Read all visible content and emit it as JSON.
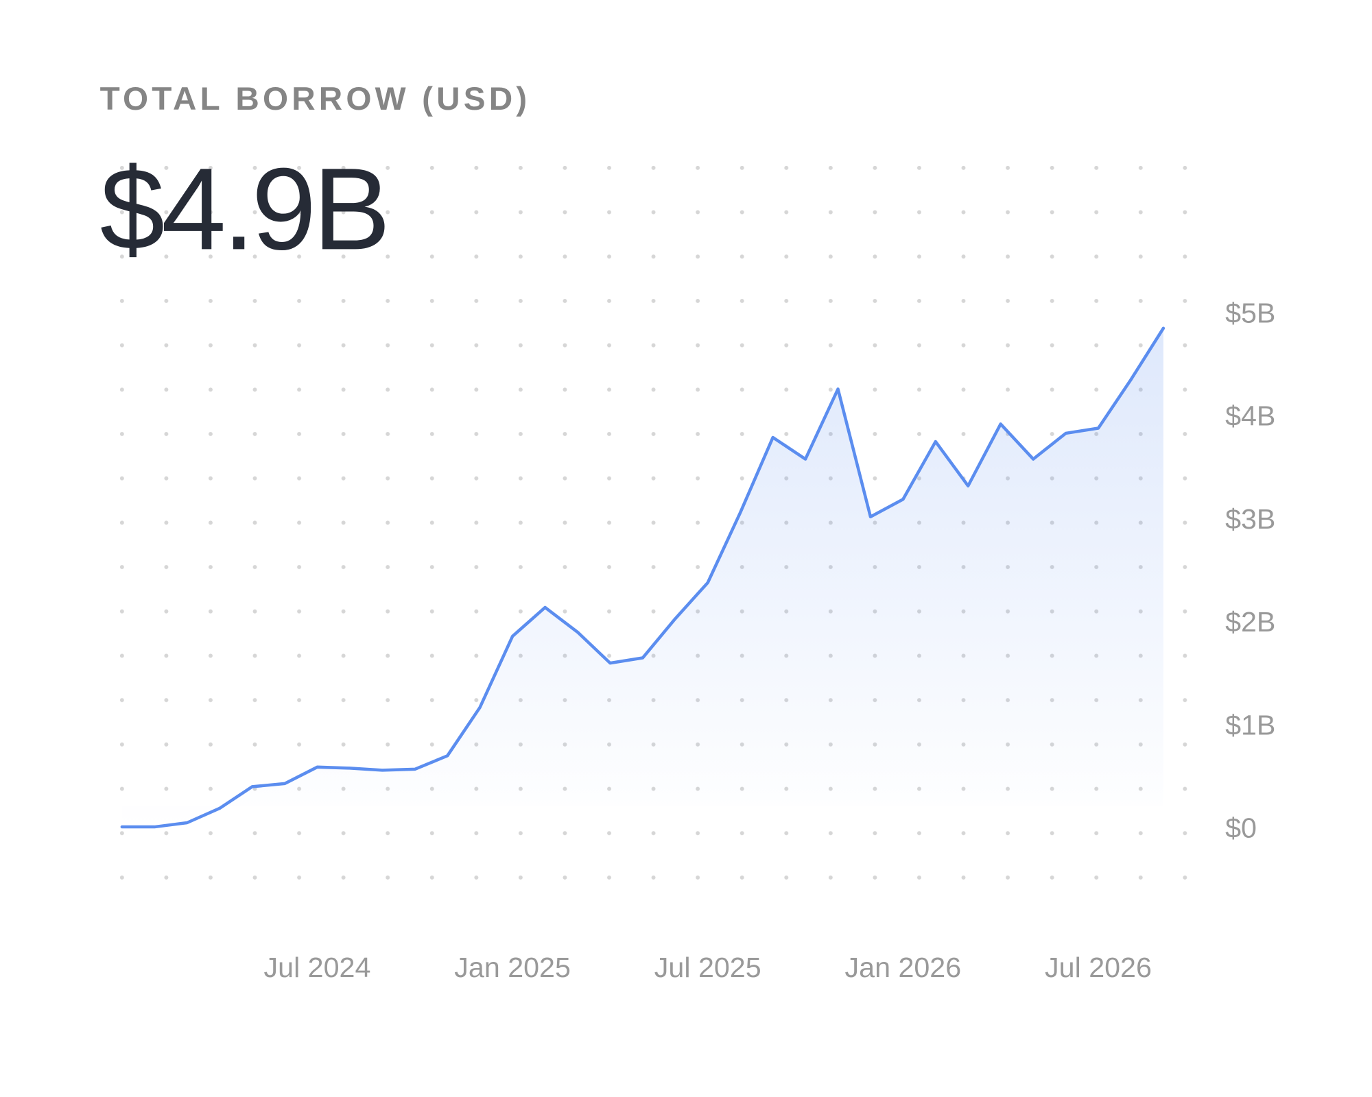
{
  "chart_data": {
    "type": "line",
    "title": "TOTAL BORROW (USD)",
    "headline": "$4.9B",
    "x": [
      "2024-01",
      "2024-02",
      "2024-03",
      "2024-04",
      "2024-05",
      "2024-06",
      "2024-07",
      "2024-08",
      "2024-09",
      "2024-10",
      "2024-11",
      "2024-12",
      "2025-01",
      "2025-02",
      "2025-03",
      "2025-04",
      "2025-05",
      "2025-06",
      "2025-07",
      "2025-08",
      "2025-09",
      "2025-10",
      "2025-11",
      "2025-12",
      "2026-01",
      "2026-02",
      "2026-03",
      "2026-04",
      "2026-05",
      "2026-06",
      "2026-07",
      "2026-08",
      "2026-09"
    ],
    "values": [
      10000000,
      10000000,
      50000000,
      190000000,
      400000000,
      430000000,
      590000000,
      580000000,
      560000000,
      570000000,
      700000000,
      1170000000,
      1860000000,
      2140000000,
      1900000000,
      1600000000,
      1650000000,
      2030000000,
      2380000000,
      3060000000,
      3790000000,
      3580000000,
      4260000000,
      3020000000,
      3190000000,
      3750000000,
      3320000000,
      3920000000,
      3580000000,
      3830000000,
      3880000000,
      4350000000,
      4850000000
    ],
    "color": "#5b8def",
    "xlim": [
      "2024-01",
      "2026-09"
    ],
    "xticks": [
      {
        "value": "2024-07",
        "label": "Jul 2024"
      },
      {
        "value": "2025-01",
        "label": "Jan 2025"
      },
      {
        "value": "2025-07",
        "label": "Jul 2025"
      },
      {
        "value": "2026-01",
        "label": "Jan 2026"
      },
      {
        "value": "2026-07",
        "label": "Jul 2026"
      }
    ],
    "ylim": [
      -480000000,
      5000000000
    ],
    "yticks": [
      {
        "value": 0,
        "label": "$0"
      },
      {
        "value": 1000000000,
        "label": "$1B"
      },
      {
        "value": 2000000000,
        "label": "$2B"
      },
      {
        "value": 3000000000,
        "label": "$3B"
      },
      {
        "value": 4000000000,
        "label": "$4B"
      },
      {
        "value": 5000000000,
        "label": "$5B"
      }
    ]
  }
}
